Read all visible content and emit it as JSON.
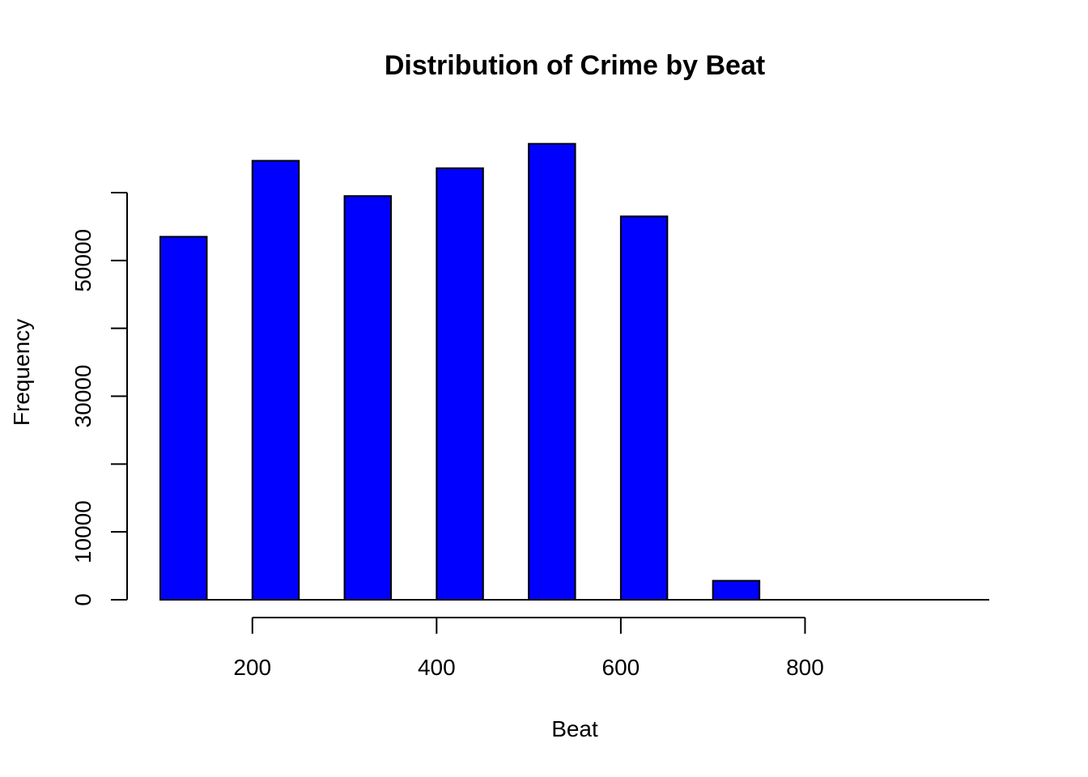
{
  "chart_data": {
    "type": "bar",
    "title": "Distribution of Crime by Beat",
    "xlabel": "Beat",
    "ylabel": "Frequency",
    "bins": [
      {
        "start": 100,
        "end": 200,
        "value": 53500
      },
      {
        "start": 200,
        "end": 300,
        "value": 64700
      },
      {
        "start": 300,
        "end": 400,
        "value": 59500
      },
      {
        "start": 400,
        "end": 500,
        "value": 63600
      },
      {
        "start": 500,
        "end": 600,
        "value": 67200
      },
      {
        "start": 600,
        "end": 700,
        "value": 56500
      },
      {
        "start": 700,
        "end": 800,
        "value": 2800
      },
      {
        "start": 800,
        "end": 900,
        "value": 0
      },
      {
        "start": 900,
        "end": 1000,
        "value": 0
      }
    ],
    "xticks": [
      200,
      400,
      600,
      800
    ],
    "yticks": [
      0,
      10000,
      20000,
      30000,
      40000,
      50000,
      60000
    ],
    "ytick_labels": [
      "0",
      "10000",
      "",
      "30000",
      "",
      "50000",
      ""
    ],
    "xlim": [
      100,
      1000
    ],
    "ylim": [
      0,
      70000
    ],
    "bar_color": "#0000ff",
    "grid": false,
    "legend": "none"
  }
}
